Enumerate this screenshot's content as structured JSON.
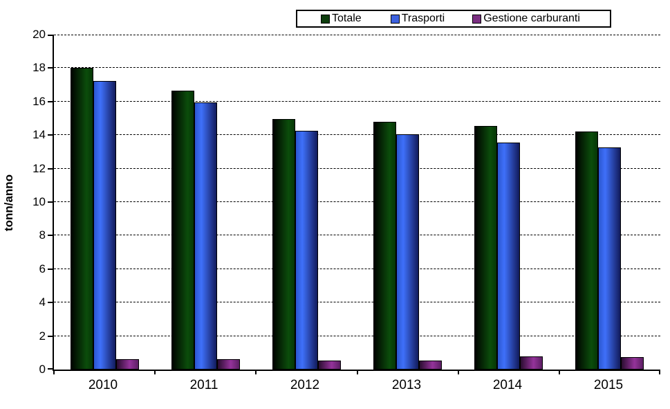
{
  "chart_data": {
    "type": "bar",
    "title": "",
    "ylabel": "tonn/anno",
    "xlabel": "",
    "ylim": [
      0,
      20
    ],
    "ytick_step": 2,
    "grid": "horizontal dashed",
    "legend_position": "top center, boxed",
    "background": "#ffffff",
    "axis_color": "#000000",
    "gridline_color": "#000000",
    "text_color": "#000000",
    "categories": [
      "2010",
      "2011",
      "2012",
      "2013",
      "2014",
      "2015"
    ],
    "series": [
      {
        "name": "Totale",
        "values": [
          18.0,
          16.65,
          14.95,
          14.8,
          14.55,
          14.2
        ],
        "legend_color": "#0E3E0E",
        "bar_gradient": [
          "#000300 0%",
          "#0B4D0B 72%",
          "#063606 100%"
        ]
      },
      {
        "name": "Trasporti",
        "values": [
          17.25,
          15.95,
          14.25,
          14.05,
          13.55,
          13.25
        ],
        "legend_color": "#3D62E0",
        "bar_gradient": [
          "#2B57CF 0%",
          "#3F70FA 30%",
          "#121B5C 100%"
        ]
      },
      {
        "name": "Gestione carburanti",
        "values": [
          0.6,
          0.6,
          0.55,
          0.55,
          0.8,
          0.75
        ],
        "legend_color": "#7B2F82",
        "bar_gradient": [
          "#2A0D30 0%",
          "#94339A 60%",
          "#5C1F64 100%"
        ]
      }
    ]
  }
}
